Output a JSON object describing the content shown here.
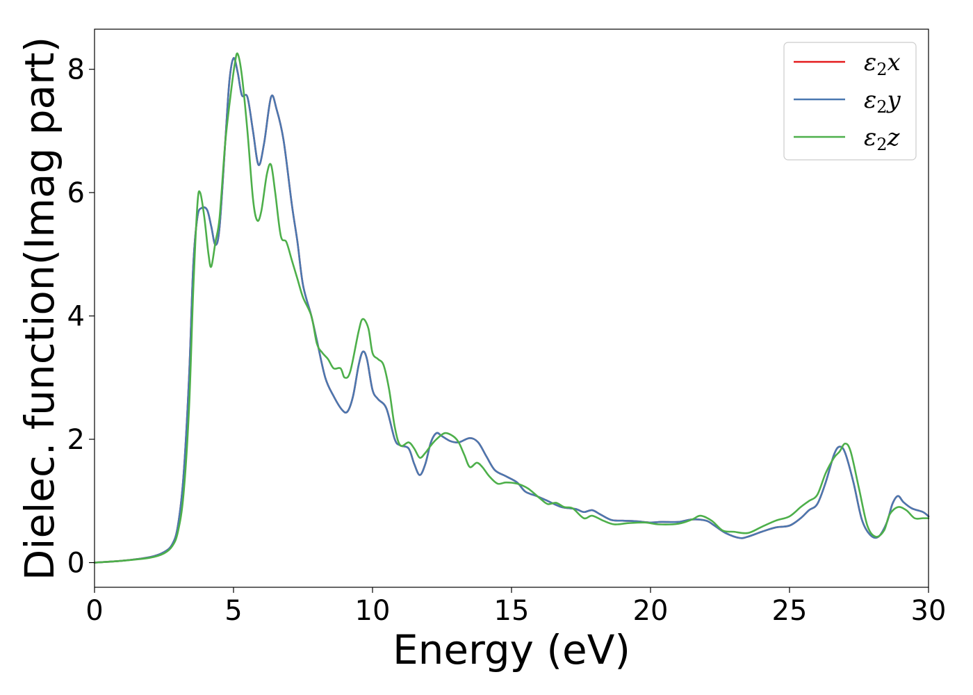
{
  "chart_data": {
    "type": "line",
    "title": "",
    "xlabel": "Energy (eV)",
    "ylabel": "Dielec. function(Imag part)",
    "xlim": [
      0,
      30
    ],
    "ylim": [
      -0.4,
      8.65
    ],
    "xticks": [
      0,
      5,
      10,
      15,
      20,
      25,
      30
    ],
    "yticks": [
      0,
      2,
      4,
      6,
      8
    ],
    "grid": false,
    "legend_position": "top-right",
    "series": [
      {
        "name": "ε2x",
        "legend_base": "ε",
        "legend_sub": "2",
        "legend_var": "x",
        "color": "#e41a1c",
        "points": [
          [
            0,
            0
          ],
          [
            1,
            0.03
          ],
          [
            2,
            0.09
          ],
          [
            2.5,
            0.17
          ],
          [
            2.8,
            0.3
          ],
          [
            3.0,
            0.6
          ],
          [
            3.2,
            1.4
          ],
          [
            3.4,
            3.0
          ],
          [
            3.55,
            4.8
          ],
          [
            3.7,
            5.6
          ],
          [
            3.85,
            5.75
          ],
          [
            4.05,
            5.72
          ],
          [
            4.2,
            5.45
          ],
          [
            4.35,
            5.15
          ],
          [
            4.5,
            5.45
          ],
          [
            4.7,
            6.8
          ],
          [
            4.85,
            7.8
          ],
          [
            5.0,
            8.18
          ],
          [
            5.15,
            7.95
          ],
          [
            5.3,
            7.58
          ],
          [
            5.5,
            7.55
          ],
          [
            5.7,
            7.0
          ],
          [
            5.9,
            6.45
          ],
          [
            6.1,
            6.8
          ],
          [
            6.35,
            7.55
          ],
          [
            6.55,
            7.35
          ],
          [
            6.8,
            6.85
          ],
          [
            7.1,
            5.8
          ],
          [
            7.3,
            5.2
          ],
          [
            7.5,
            4.5
          ],
          [
            7.8,
            4.0
          ],
          [
            8.0,
            3.6
          ],
          [
            8.3,
            3.0
          ],
          [
            8.6,
            2.7
          ],
          [
            8.9,
            2.48
          ],
          [
            9.1,
            2.45
          ],
          [
            9.3,
            2.7
          ],
          [
            9.5,
            3.2
          ],
          [
            9.65,
            3.42
          ],
          [
            9.8,
            3.3
          ],
          [
            10.0,
            2.8
          ],
          [
            10.2,
            2.65
          ],
          [
            10.5,
            2.5
          ],
          [
            10.8,
            2.0
          ],
          [
            11.0,
            1.9
          ],
          [
            11.3,
            1.85
          ],
          [
            11.5,
            1.6
          ],
          [
            11.7,
            1.42
          ],
          [
            11.9,
            1.6
          ],
          [
            12.1,
            1.95
          ],
          [
            12.3,
            2.1
          ],
          [
            12.5,
            2.05
          ],
          [
            12.8,
            1.97
          ],
          [
            13.1,
            1.95
          ],
          [
            13.5,
            2.02
          ],
          [
            13.8,
            1.95
          ],
          [
            14.1,
            1.72
          ],
          [
            14.4,
            1.5
          ],
          [
            14.8,
            1.4
          ],
          [
            15.2,
            1.3
          ],
          [
            15.5,
            1.15
          ],
          [
            15.9,
            1.08
          ],
          [
            16.3,
            1.0
          ],
          [
            16.8,
            0.9
          ],
          [
            17.3,
            0.87
          ],
          [
            17.6,
            0.82
          ],
          [
            17.9,
            0.85
          ],
          [
            18.2,
            0.78
          ],
          [
            18.6,
            0.69
          ],
          [
            19.0,
            0.68
          ],
          [
            19.5,
            0.67
          ],
          [
            20.0,
            0.65
          ],
          [
            20.4,
            0.66
          ],
          [
            21.0,
            0.66
          ],
          [
            21.5,
            0.7
          ],
          [
            22.0,
            0.68
          ],
          [
            22.3,
            0.6
          ],
          [
            22.7,
            0.48
          ],
          [
            23.2,
            0.4
          ],
          [
            23.5,
            0.42
          ],
          [
            24.0,
            0.5
          ],
          [
            24.5,
            0.57
          ],
          [
            25.0,
            0.6
          ],
          [
            25.4,
            0.72
          ],
          [
            25.7,
            0.85
          ],
          [
            26.0,
            0.95
          ],
          [
            26.3,
            1.3
          ],
          [
            26.6,
            1.75
          ],
          [
            26.8,
            1.88
          ],
          [
            27.0,
            1.78
          ],
          [
            27.3,
            1.3
          ],
          [
            27.6,
            0.7
          ],
          [
            27.9,
            0.45
          ],
          [
            28.2,
            0.42
          ],
          [
            28.5,
            0.65
          ],
          [
            28.7,
            0.95
          ],
          [
            28.9,
            1.08
          ],
          [
            29.1,
            0.98
          ],
          [
            29.4,
            0.88
          ],
          [
            29.8,
            0.82
          ],
          [
            30.0,
            0.75
          ]
        ]
      },
      {
        "name": "ε2y",
        "legend_base": "ε",
        "legend_sub": "2",
        "legend_var": "y",
        "color": "#4a78b0",
        "points": [
          [
            0,
            0
          ],
          [
            1,
            0.03
          ],
          [
            2,
            0.09
          ],
          [
            2.5,
            0.17
          ],
          [
            2.8,
            0.3
          ],
          [
            3.0,
            0.6
          ],
          [
            3.2,
            1.4
          ],
          [
            3.4,
            3.0
          ],
          [
            3.55,
            4.8
          ],
          [
            3.7,
            5.6
          ],
          [
            3.85,
            5.75
          ],
          [
            4.05,
            5.72
          ],
          [
            4.2,
            5.45
          ],
          [
            4.35,
            5.15
          ],
          [
            4.5,
            5.45
          ],
          [
            4.7,
            6.8
          ],
          [
            4.85,
            7.8
          ],
          [
            5.0,
            8.18
          ],
          [
            5.15,
            7.95
          ],
          [
            5.3,
            7.58
          ],
          [
            5.5,
            7.55
          ],
          [
            5.7,
            7.0
          ],
          [
            5.9,
            6.45
          ],
          [
            6.1,
            6.8
          ],
          [
            6.35,
            7.55
          ],
          [
            6.55,
            7.35
          ],
          [
            6.8,
            6.85
          ],
          [
            7.1,
            5.8
          ],
          [
            7.3,
            5.2
          ],
          [
            7.5,
            4.5
          ],
          [
            7.8,
            4.0
          ],
          [
            8.0,
            3.6
          ],
          [
            8.3,
            3.0
          ],
          [
            8.6,
            2.7
          ],
          [
            8.9,
            2.48
          ],
          [
            9.1,
            2.45
          ],
          [
            9.3,
            2.7
          ],
          [
            9.5,
            3.2
          ],
          [
            9.65,
            3.42
          ],
          [
            9.8,
            3.3
          ],
          [
            10.0,
            2.8
          ],
          [
            10.2,
            2.65
          ],
          [
            10.5,
            2.5
          ],
          [
            10.8,
            2.0
          ],
          [
            11.0,
            1.9
          ],
          [
            11.3,
            1.85
          ],
          [
            11.5,
            1.6
          ],
          [
            11.7,
            1.42
          ],
          [
            11.9,
            1.6
          ],
          [
            12.1,
            1.95
          ],
          [
            12.3,
            2.1
          ],
          [
            12.5,
            2.05
          ],
          [
            12.8,
            1.97
          ],
          [
            13.1,
            1.95
          ],
          [
            13.5,
            2.02
          ],
          [
            13.8,
            1.95
          ],
          [
            14.1,
            1.72
          ],
          [
            14.4,
            1.5
          ],
          [
            14.8,
            1.4
          ],
          [
            15.2,
            1.3
          ],
          [
            15.5,
            1.15
          ],
          [
            15.9,
            1.08
          ],
          [
            16.3,
            1.0
          ],
          [
            16.8,
            0.9
          ],
          [
            17.3,
            0.87
          ],
          [
            17.6,
            0.82
          ],
          [
            17.9,
            0.85
          ],
          [
            18.2,
            0.78
          ],
          [
            18.6,
            0.69
          ],
          [
            19.0,
            0.68
          ],
          [
            19.5,
            0.67
          ],
          [
            20.0,
            0.65
          ],
          [
            20.4,
            0.66
          ],
          [
            21.0,
            0.66
          ],
          [
            21.5,
            0.7
          ],
          [
            22.0,
            0.68
          ],
          [
            22.3,
            0.6
          ],
          [
            22.7,
            0.48
          ],
          [
            23.2,
            0.4
          ],
          [
            23.5,
            0.42
          ],
          [
            24.0,
            0.5
          ],
          [
            24.5,
            0.57
          ],
          [
            25.0,
            0.6
          ],
          [
            25.4,
            0.72
          ],
          [
            25.7,
            0.85
          ],
          [
            26.0,
            0.95
          ],
          [
            26.3,
            1.3
          ],
          [
            26.6,
            1.75
          ],
          [
            26.8,
            1.88
          ],
          [
            27.0,
            1.78
          ],
          [
            27.3,
            1.3
          ],
          [
            27.6,
            0.7
          ],
          [
            27.9,
            0.45
          ],
          [
            28.2,
            0.42
          ],
          [
            28.5,
            0.65
          ],
          [
            28.7,
            0.95
          ],
          [
            28.9,
            1.08
          ],
          [
            29.1,
            0.98
          ],
          [
            29.4,
            0.88
          ],
          [
            29.8,
            0.82
          ],
          [
            30.0,
            0.75
          ]
        ]
      },
      {
        "name": "ε2z",
        "legend_base": "ε",
        "legend_sub": "2",
        "legend_var": "z",
        "color": "#4daf4a",
        "points": [
          [
            0,
            0
          ],
          [
            1,
            0.03
          ],
          [
            2,
            0.08
          ],
          [
            2.5,
            0.15
          ],
          [
            2.8,
            0.27
          ],
          [
            3.0,
            0.5
          ],
          [
            3.2,
            1.1
          ],
          [
            3.4,
            2.5
          ],
          [
            3.55,
            4.4
          ],
          [
            3.7,
            5.8
          ],
          [
            3.8,
            6.0
          ],
          [
            3.95,
            5.6
          ],
          [
            4.1,
            5.0
          ],
          [
            4.2,
            4.8
          ],
          [
            4.35,
            5.2
          ],
          [
            4.5,
            5.6
          ],
          [
            4.7,
            6.8
          ],
          [
            4.9,
            7.6
          ],
          [
            5.05,
            8.1
          ],
          [
            5.15,
            8.25
          ],
          [
            5.3,
            7.9
          ],
          [
            5.5,
            7.0
          ],
          [
            5.7,
            5.9
          ],
          [
            5.85,
            5.55
          ],
          [
            6.0,
            5.7
          ],
          [
            6.2,
            6.3
          ],
          [
            6.35,
            6.45
          ],
          [
            6.5,
            6.0
          ],
          [
            6.7,
            5.3
          ],
          [
            6.9,
            5.2
          ],
          [
            7.1,
            4.9
          ],
          [
            7.3,
            4.6
          ],
          [
            7.5,
            4.3
          ],
          [
            7.8,
            4.0
          ],
          [
            8.0,
            3.55
          ],
          [
            8.2,
            3.4
          ],
          [
            8.4,
            3.3
          ],
          [
            8.6,
            3.15
          ],
          [
            8.85,
            3.15
          ],
          [
            9.0,
            3.0
          ],
          [
            9.2,
            3.1
          ],
          [
            9.5,
            3.75
          ],
          [
            9.65,
            3.95
          ],
          [
            9.85,
            3.8
          ],
          [
            10.0,
            3.4
          ],
          [
            10.2,
            3.3
          ],
          [
            10.4,
            3.2
          ],
          [
            10.6,
            2.8
          ],
          [
            10.8,
            2.2
          ],
          [
            11.0,
            1.9
          ],
          [
            11.3,
            1.95
          ],
          [
            11.5,
            1.85
          ],
          [
            11.7,
            1.7
          ],
          [
            11.9,
            1.78
          ],
          [
            12.1,
            1.9
          ],
          [
            12.3,
            2.0
          ],
          [
            12.6,
            2.1
          ],
          [
            12.9,
            2.05
          ],
          [
            13.1,
            1.95
          ],
          [
            13.3,
            1.75
          ],
          [
            13.5,
            1.55
          ],
          [
            13.75,
            1.62
          ],
          [
            13.95,
            1.55
          ],
          [
            14.2,
            1.4
          ],
          [
            14.5,
            1.28
          ],
          [
            14.8,
            1.3
          ],
          [
            15.2,
            1.28
          ],
          [
            15.6,
            1.2
          ],
          [
            16.0,
            1.05
          ],
          [
            16.3,
            0.95
          ],
          [
            16.6,
            0.97
          ],
          [
            16.9,
            0.9
          ],
          [
            17.2,
            0.88
          ],
          [
            17.6,
            0.72
          ],
          [
            17.9,
            0.76
          ],
          [
            18.3,
            0.68
          ],
          [
            18.7,
            0.62
          ],
          [
            19.2,
            0.64
          ],
          [
            19.8,
            0.65
          ],
          [
            20.3,
            0.62
          ],
          [
            21.0,
            0.63
          ],
          [
            21.5,
            0.7
          ],
          [
            21.8,
            0.76
          ],
          [
            22.2,
            0.68
          ],
          [
            22.6,
            0.52
          ],
          [
            23.0,
            0.5
          ],
          [
            23.5,
            0.48
          ],
          [
            24.0,
            0.58
          ],
          [
            24.5,
            0.68
          ],
          [
            25.0,
            0.75
          ],
          [
            25.4,
            0.9
          ],
          [
            25.7,
            1.0
          ],
          [
            26.0,
            1.1
          ],
          [
            26.3,
            1.45
          ],
          [
            26.6,
            1.7
          ],
          [
            26.8,
            1.8
          ],
          [
            27.0,
            1.93
          ],
          [
            27.2,
            1.8
          ],
          [
            27.5,
            1.2
          ],
          [
            27.8,
            0.6
          ],
          [
            28.1,
            0.42
          ],
          [
            28.4,
            0.52
          ],
          [
            28.6,
            0.78
          ],
          [
            28.9,
            0.9
          ],
          [
            29.2,
            0.85
          ],
          [
            29.5,
            0.72
          ],
          [
            29.8,
            0.72
          ],
          [
            30.0,
            0.72
          ]
        ]
      }
    ]
  }
}
